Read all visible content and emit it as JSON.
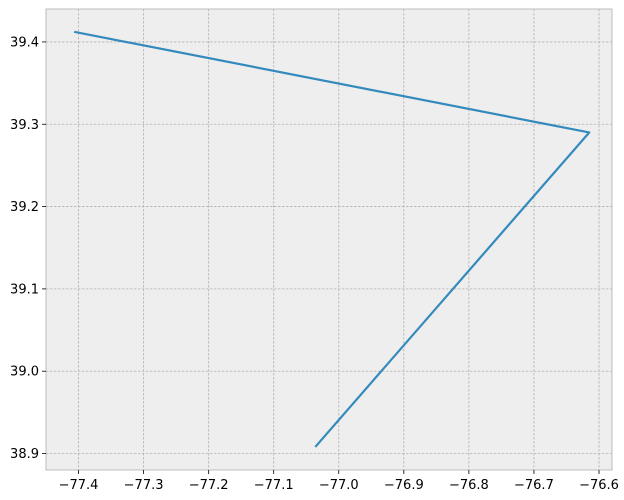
{
  "chart_data": {
    "type": "line",
    "title": "",
    "xlabel": "",
    "ylabel": "",
    "xlim": [
      -77.45,
      -76.58
    ],
    "ylim": [
      38.88,
      39.44
    ],
    "x_ticks": [
      -77.4,
      -77.3,
      -77.2,
      -77.1,
      -77.0,
      -76.9,
      -76.8,
      -76.7,
      -76.6
    ],
    "x_tick_labels": [
      "−77.4",
      "−77.3",
      "−77.2",
      "−77.1",
      "−77.0",
      "−76.9",
      "−76.8",
      "−76.7",
      "−76.6"
    ],
    "y_ticks": [
      38.9,
      39.0,
      39.1,
      39.2,
      39.3,
      39.4
    ],
    "y_tick_labels": [
      "38.9",
      "39.0",
      "39.1",
      "39.2",
      "39.3",
      "39.4"
    ],
    "grid": true,
    "series": [
      {
        "x": [
          -77.405,
          -76.615,
          -77.035
        ],
        "y": [
          39.412,
          39.29,
          38.909
        ],
        "color": "#348abd"
      }
    ],
    "colors": {
      "axes_background": "#eeeeee",
      "axes_edge": "#bcbcbc"
    }
  }
}
